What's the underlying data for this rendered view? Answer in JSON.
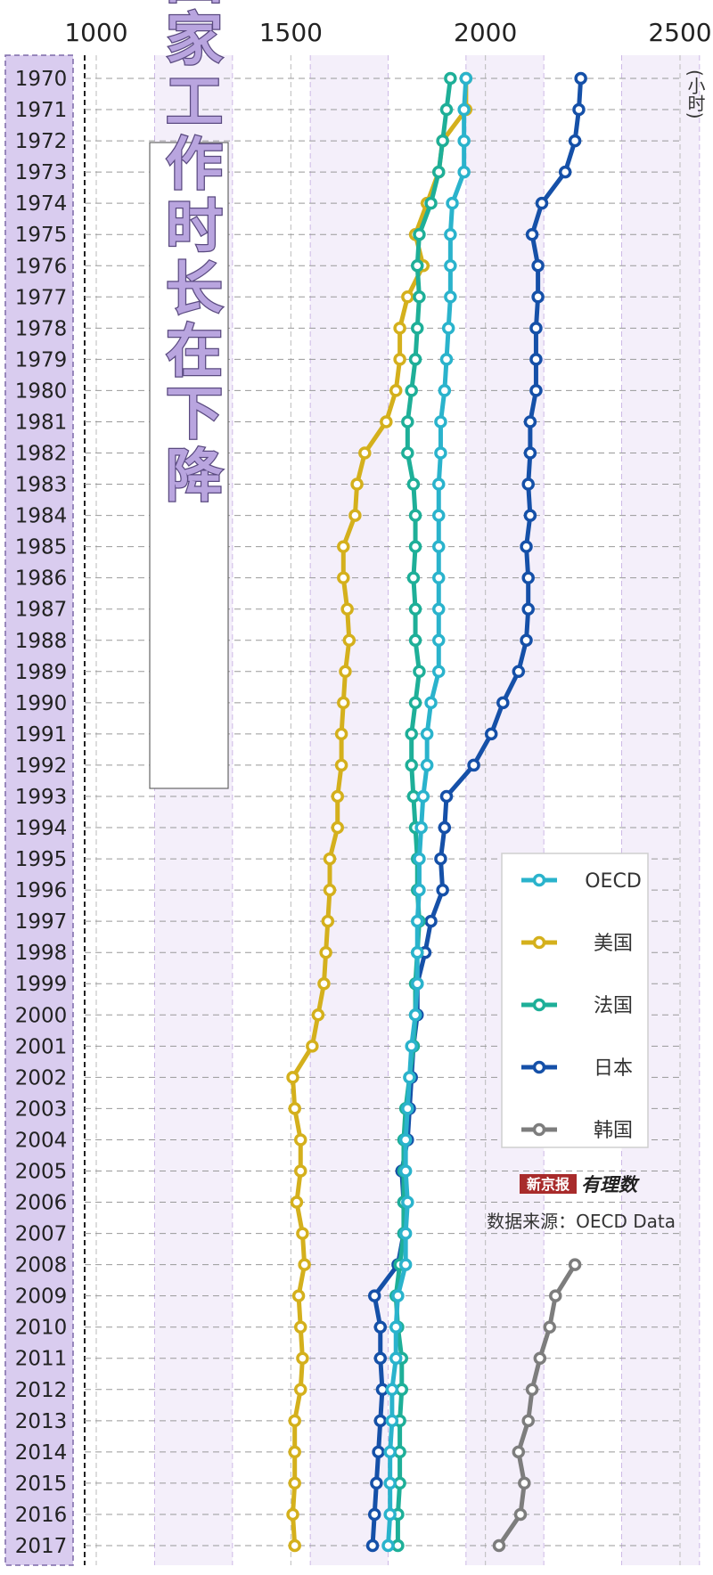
{
  "chart_data": {
    "type": "line",
    "title": "发达国家工作时长在下降",
    "unit_label": "(小时)",
    "source": "数据来源：OECD Data",
    "brand": {
      "logo_part1": "新京报",
      "logo_part2": "有理数"
    },
    "x_axis": {
      "range": [
        1000,
        2500
      ],
      "ticks": [
        1000,
        1500,
        2000,
        2500
      ],
      "position": "top"
    },
    "y_axis": {
      "categories": [
        1970,
        1971,
        1972,
        1973,
        1974,
        1975,
        1976,
        1977,
        1978,
        1979,
        1980,
        1981,
        1982,
        1983,
        1984,
        1985,
        1986,
        1987,
        1988,
        1989,
        1990,
        1991,
        1992,
        1993,
        1994,
        1995,
        1996,
        1997,
        1998,
        1999,
        2000,
        2001,
        2002,
        2003,
        2004,
        2005,
        2006,
        2007,
        2008,
        2009,
        2010,
        2011,
        2012,
        2013,
        2014,
        2015,
        2016,
        2017
      ]
    },
    "grid": true,
    "legend_placement": "right",
    "series": [
      {
        "name": "美国",
        "color": "#d4b01c",
        "start_year": 1970,
        "values": [
          1950,
          1950,
          1890,
          1880,
          1850,
          1820,
          1840,
          1800,
          1780,
          1780,
          1770,
          1745,
          1690,
          1670,
          1665,
          1635,
          1635,
          1645,
          1650,
          1640,
          1635,
          1630,
          1630,
          1620,
          1620,
          1600,
          1600,
          1595,
          1590,
          1585,
          1570,
          1555,
          1505,
          1510,
          1525,
          1525,
          1515,
          1530,
          1535,
          1520,
          1525,
          1530,
          1525,
          1510,
          1510,
          1510,
          1505,
          1510
        ]
      },
      {
        "name": "日本",
        "color": "#1550a8",
        "start_year": 1970,
        "values": [
          2245,
          2240,
          2230,
          2205,
          2145,
          2120,
          2135,
          2135,
          2130,
          2130,
          2130,
          2115,
          2115,
          2110,
          2115,
          2105,
          2110,
          2110,
          2105,
          2085,
          2045,
          2015,
          1970,
          1900,
          1895,
          1885,
          1890,
          1860,
          1845,
          1825,
          1825,
          1815,
          1810,
          1805,
          1800,
          1785,
          1790,
          1790,
          1775,
          1715,
          1730,
          1730,
          1735,
          1730,
          1725,
          1720,
          1715,
          1710
        ]
      },
      {
        "name": "法国",
        "color": "#1eaf98",
        "start_year": 1970,
        "values": [
          1910,
          1900,
          1890,
          1880,
          1860,
          1830,
          1825,
          1830,
          1825,
          1820,
          1810,
          1800,
          1800,
          1815,
          1820,
          1820,
          1815,
          1820,
          1820,
          1830,
          1820,
          1810,
          1810,
          1815,
          1820,
          1825,
          1825,
          1830,
          1825,
          1820,
          1820,
          1815,
          1805,
          1795,
          1790,
          1790,
          1790,
          1790,
          1780,
          1770,
          1775,
          1785,
          1785,
          1780,
          1780,
          1780,
          1775,
          1775
        ]
      },
      {
        "name": "OECD",
        "color": "#2ab3cc",
        "start_year": 1970,
        "values": [
          1950,
          1945,
          1945,
          1945,
          1915,
          1910,
          1910,
          1910,
          1905,
          1900,
          1895,
          1885,
          1885,
          1880,
          1880,
          1880,
          1880,
          1880,
          1880,
          1880,
          1860,
          1850,
          1850,
          1840,
          1835,
          1830,
          1830,
          1825,
          1825,
          1825,
          1820,
          1810,
          1805,
          1800,
          1795,
          1795,
          1800,
          1795,
          1795,
          1775,
          1770,
          1770,
          1760,
          1760,
          1755,
          1755,
          1755,
          1750
        ]
      },
      {
        "name": "韩国",
        "color": "#7d7d7d",
        "start_year": 2008,
        "values": [
          2230,
          2180,
          2165,
          2140,
          2120,
          2110,
          2085,
          2100,
          2090,
          2035
        ]
      }
    ],
    "legend_order": [
      "OECD",
      "美国",
      "法国",
      "日本",
      "韩国"
    ]
  }
}
